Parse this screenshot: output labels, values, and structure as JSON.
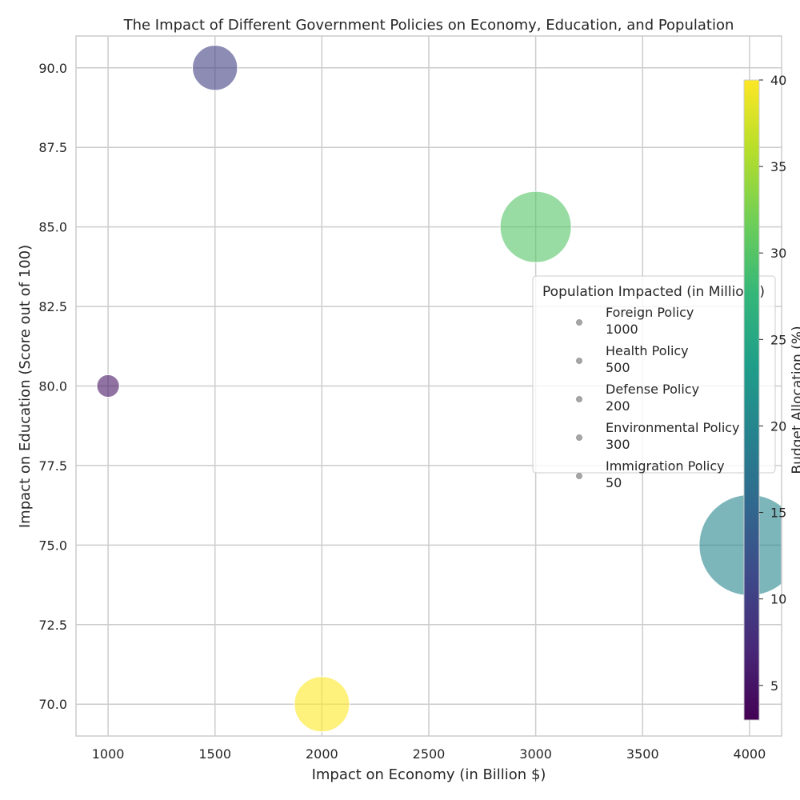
{
  "chart_data": {
    "type": "scatter",
    "title": "The Impact of Different Government Policies on Economy, Education, and Population",
    "xlabel": "Impact on Economy (in Billion $)",
    "ylabel": "Impact on Education (Score out of 100)",
    "xlim": [
      850,
      4150
    ],
    "ylim": [
      69,
      91
    ],
    "xticks": [
      1000,
      1500,
      2000,
      2500,
      3000,
      3500,
      4000
    ],
    "xtick_labels": [
      "1000",
      "1500",
      "2000",
      "2500",
      "3000",
      "3500",
      "4000"
    ],
    "yticks": [
      70,
      72.5,
      75,
      77.5,
      80,
      82.5,
      85,
      87.5,
      90
    ],
    "ytick_labels": [
      "70.0",
      "72.5",
      "75.0",
      "77.5",
      "80.0",
      "82.5",
      "85.0",
      "87.5",
      "90.0"
    ],
    "grid": true,
    "points": [
      {
        "x": 4000,
        "y": 75,
        "population": 1000,
        "budget": 20
      },
      {
        "x": 3000,
        "y": 85,
        "population": 500,
        "budget": 30
      },
      {
        "x": 1500,
        "y": 90,
        "population": 200,
        "budget": 10
      },
      {
        "x": 2000,
        "y": 70,
        "population": 300,
        "budget": 40
      },
      {
        "x": 1000,
        "y": 80,
        "population": 50,
        "budget": 5
      }
    ],
    "legend": {
      "title": "Population Impacted (in Millions)",
      "placement": "center-right",
      "entries": [
        {
          "name": "Foreign Policy",
          "value": "1000"
        },
        {
          "name": "Health Policy",
          "value": "500"
        },
        {
          "name": "Defense Policy",
          "value": "200"
        },
        {
          "name": "Environmental Policy",
          "value": "300"
        },
        {
          "name": "Immigration Policy",
          "value": "50"
        }
      ]
    },
    "colorbar": {
      "label": "Budget Allocation (%)",
      "colormap": "viridis",
      "range": [
        3,
        40
      ],
      "ticks": [
        5,
        10,
        15,
        20,
        25,
        30,
        35,
        40
      ],
      "tick_labels": [
        "5",
        "10",
        "15",
        "20",
        "25",
        "30",
        "35",
        "40"
      ]
    },
    "colors": {
      "viridis": [
        "#440154",
        "#482878",
        "#3e4989",
        "#31688e",
        "#26828e",
        "#1f9e89",
        "#35b779",
        "#6ece58",
        "#b5de2b",
        "#fde725"
      ],
      "grid": "#cccccc",
      "axes_edge": "#cccccc",
      "legend_marker": "#a6a6a6"
    }
  }
}
